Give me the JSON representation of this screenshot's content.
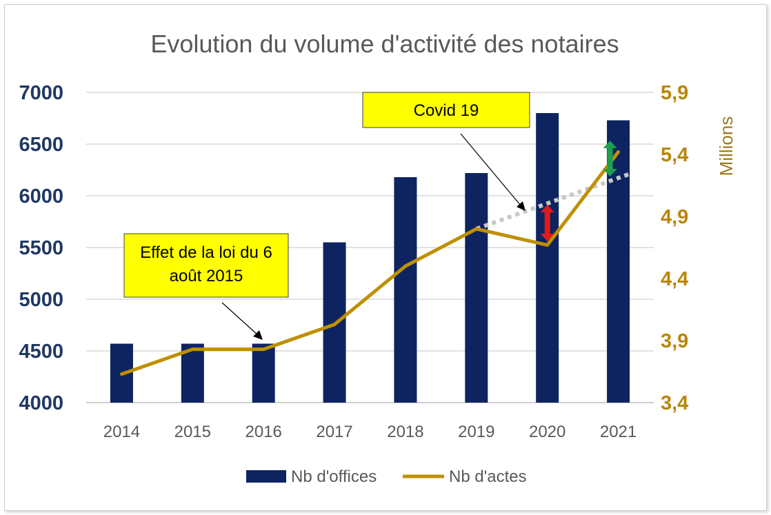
{
  "chart_data": {
    "type": "bar",
    "title": "Evolution du volume d'activité des notaires",
    "categories": [
      "2014",
      "2015",
      "2016",
      "2017",
      "2018",
      "2019",
      "2020",
      "2021"
    ],
    "series": [
      {
        "name": "Nb d'offices",
        "type": "bar",
        "axis": "left",
        "values": [
          4570,
          4570,
          4570,
          5550,
          6180,
          6220,
          6800,
          6730
        ],
        "color": "#0e2460"
      },
      {
        "name": "Nb d'actes",
        "type": "line",
        "axis": "right",
        "values": [
          3.63,
          3.83,
          3.83,
          4.03,
          4.5,
          4.8,
          4.67,
          5.42
        ],
        "color": "#bf9000"
      }
    ],
    "trend_projection": {
      "style": "dotted",
      "color": "#c8c8c8",
      "from": {
        "x": "2019",
        "y": 4.8
      },
      "to": {
        "x": "2021",
        "y": 5.25
      }
    },
    "y_left": {
      "ylim": [
        4000,
        7000
      ],
      "ticks": [
        "4000",
        "4500",
        "5000",
        "5500",
        "6000",
        "6500",
        "7000"
      ]
    },
    "y_right": {
      "ylim": [
        3.4,
        5.9
      ],
      "ticks": [
        "3,4",
        "3,9",
        "4,4",
        "4,9",
        "5,4",
        "5,9"
      ],
      "label": "Millions"
    },
    "grid": true,
    "legend": "bottom",
    "annotations": [
      {
        "text_lines": [
          "Effet de la loi du 6",
          "août 2015"
        ],
        "target": "2016"
      },
      {
        "text_lines": [
          "Covid 19"
        ],
        "target": "2019-2021 trend"
      }
    ],
    "gap_arrows": [
      {
        "at": "2020",
        "color": "#e31a1c"
      },
      {
        "at": "2021",
        "color": "#1e9e50"
      }
    ]
  }
}
